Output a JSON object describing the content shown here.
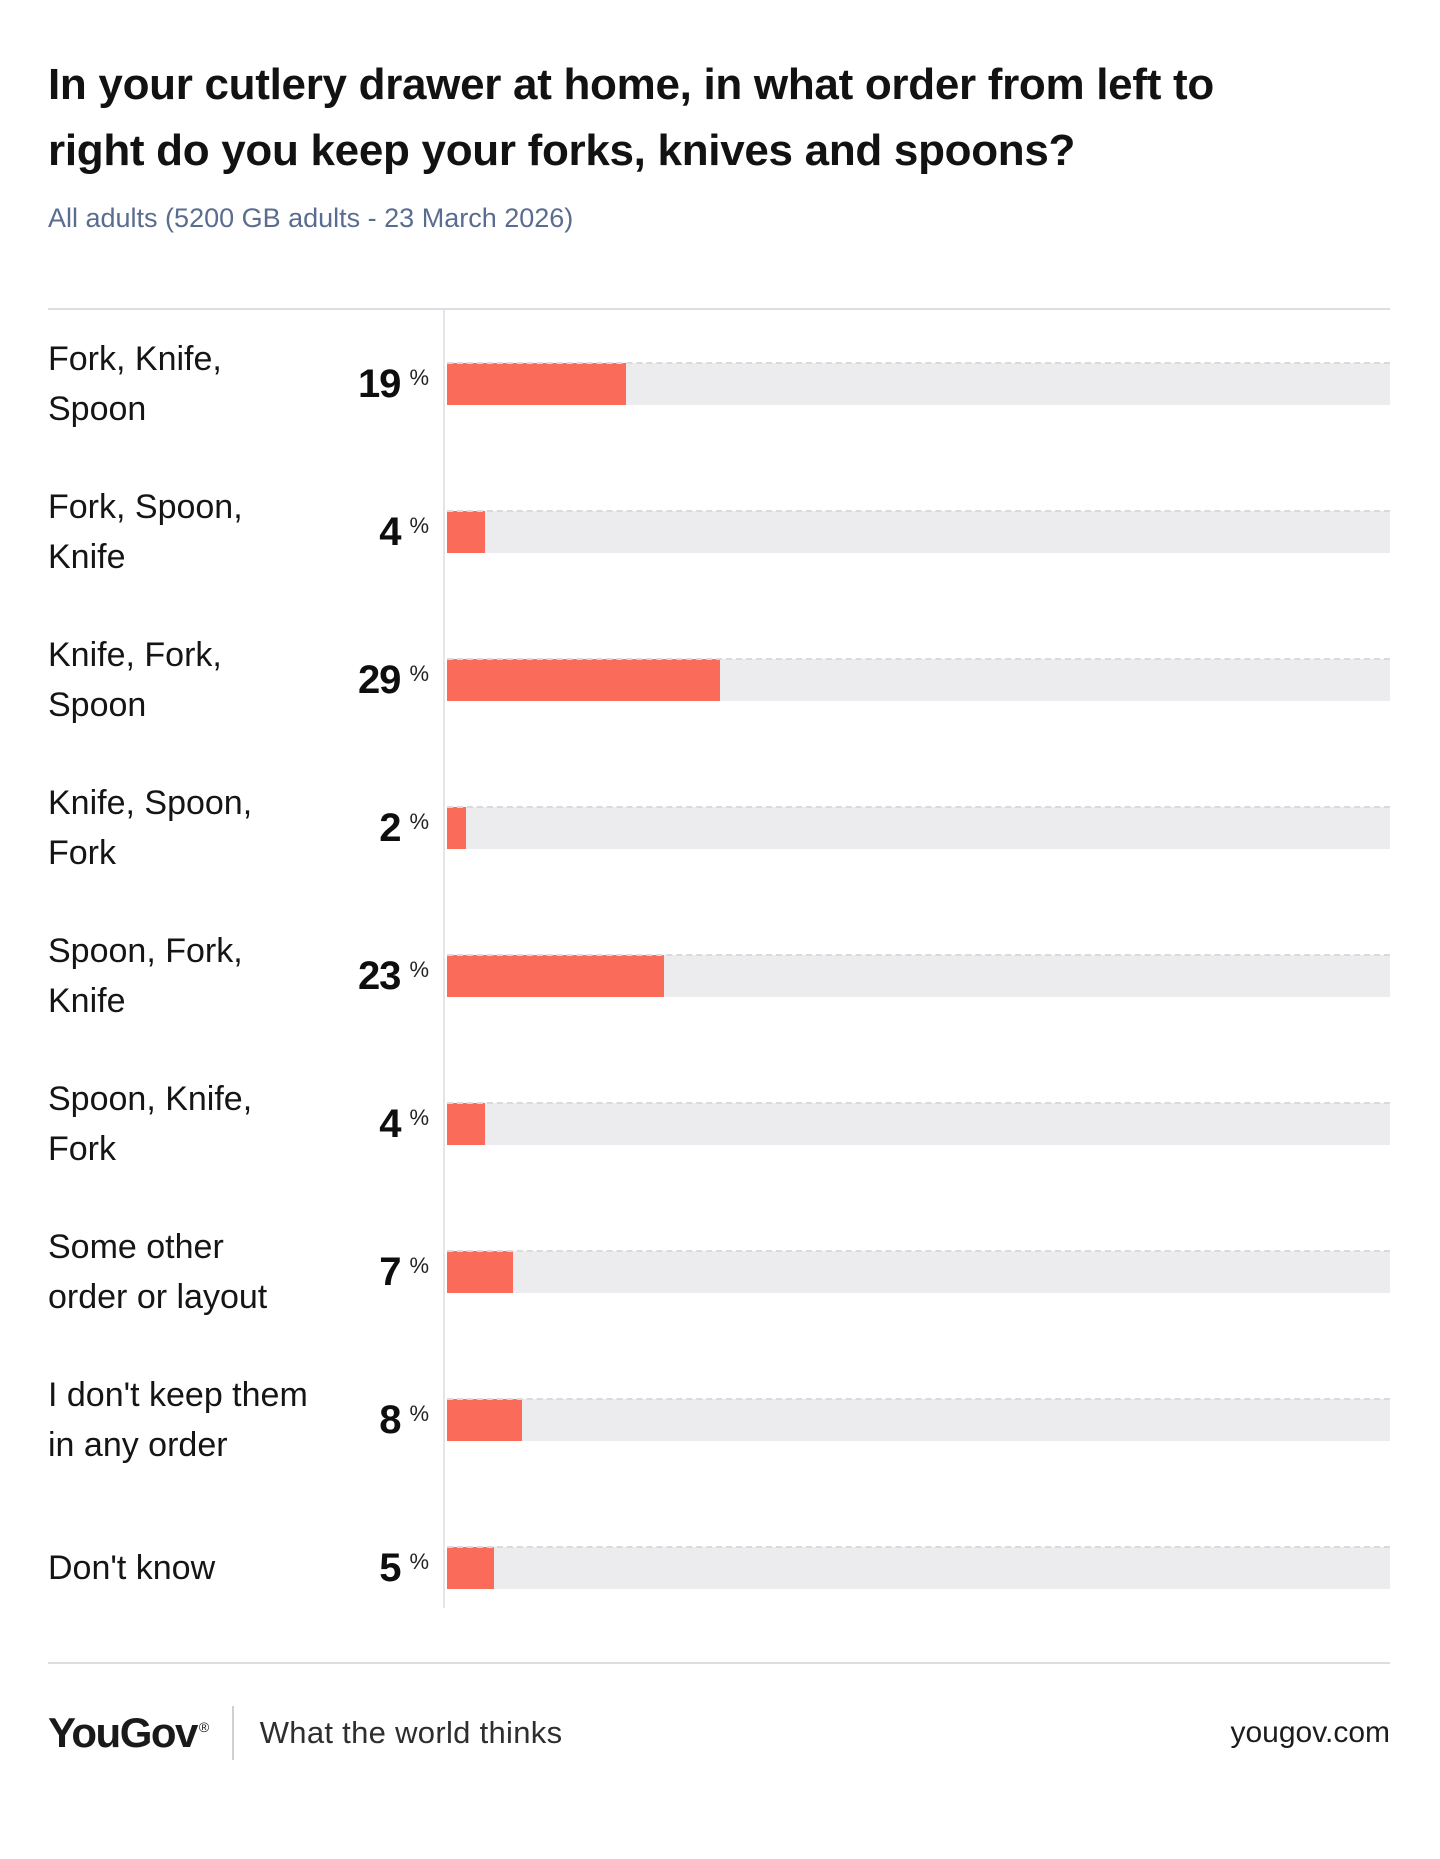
{
  "title_lines": [
    "In your cutlery drawer at home, in what order from left to",
    "right do you keep your forks, knives and spoons?"
  ],
  "subtitle": "All adults (5200 GB adults - 23 March 2026)",
  "chart_data": {
    "type": "bar",
    "orientation": "horizontal",
    "title": "In your cutlery drawer at home, in what order from left to right do you keep your forks, knives and spoons?",
    "subtitle": "All adults (5200 GB adults - 23 March 2026)",
    "unit": "%",
    "xlim": [
      0,
      100
    ],
    "grid": false,
    "legend": "none",
    "categories": [
      "Fork, Knife, Spoon",
      "Fork, Spoon, Knife",
      "Knife, Fork, Spoon",
      "Knife, Spoon, Fork",
      "Spoon, Fork, Knife",
      "Spoon, Knife, Fork",
      "Some other order or layout",
      "I don't keep them in any order",
      "Don't know"
    ],
    "category_display_lines": [
      [
        "Fork, Knife,",
        "Spoon"
      ],
      [
        "Fork, Spoon,",
        "Knife"
      ],
      [
        "Knife, Fork,",
        "Spoon"
      ],
      [
        "Knife, Spoon,",
        "Fork"
      ],
      [
        "Spoon, Fork,",
        "Knife"
      ],
      [
        "Spoon, Knife,",
        "Fork"
      ],
      [
        "Some other",
        "order or layout"
      ],
      [
        "I don't keep them",
        "in any order"
      ],
      [
        "Don't know"
      ]
    ],
    "values": [
      19,
      4,
      29,
      2,
      23,
      4,
      7,
      8,
      5
    ],
    "bar_color": "#FA6B5A",
    "track_color": "#ECECEF"
  },
  "footer": {
    "logo": "YouGov",
    "registered_mark": "®",
    "tagline": "What the world thinks",
    "website": "yougov.com"
  }
}
